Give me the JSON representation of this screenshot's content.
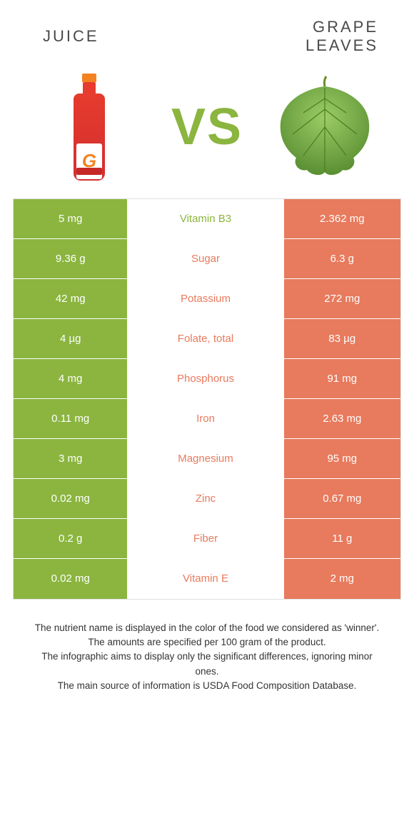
{
  "header": {
    "left": "JUICE",
    "right_line1": "GRAPE",
    "right_line2": "LEAVES",
    "vs": "VS"
  },
  "colors": {
    "left_bg": "#8bb53f",
    "right_bg": "#e87a5d",
    "mid_bg": "#ffffff",
    "cell_text": "#ffffff",
    "border": "#e0e0e0",
    "title_text": "#4a4a4a",
    "footer_text": "#333333",
    "winner_left": "#8bb53f",
    "winner_right": "#e87a5d"
  },
  "rows": [
    {
      "left": "5 mg",
      "label": "Vitamin B3",
      "right": "2.362 mg",
      "winner": "left"
    },
    {
      "left": "9.36 g",
      "label": "Sugar",
      "right": "6.3 g",
      "winner": "right"
    },
    {
      "left": "42 mg",
      "label": "Potassium",
      "right": "272 mg",
      "winner": "right"
    },
    {
      "left": "4 µg",
      "label": "Folate, total",
      "right": "83 µg",
      "winner": "right"
    },
    {
      "left": "4 mg",
      "label": "Phosphorus",
      "right": "91 mg",
      "winner": "right"
    },
    {
      "left": "0.11 mg",
      "label": "Iron",
      "right": "2.63 mg",
      "winner": "right"
    },
    {
      "left": "3 mg",
      "label": "Magnesium",
      "right": "95 mg",
      "winner": "right"
    },
    {
      "left": "0.02 mg",
      "label": "Zinc",
      "right": "0.67 mg",
      "winner": "right"
    },
    {
      "left": "0.2 g",
      "label": "Fiber",
      "right": "11 g",
      "winner": "right"
    },
    {
      "left": "0.02 mg",
      "label": "Vitamin E",
      "right": "2 mg",
      "winner": "right"
    }
  ],
  "footer": {
    "line1": "The nutrient name is displayed in the color of the food we considered as 'winner'.",
    "line2": "The amounts are specified per 100 gram of the product.",
    "line3": "The infographic aims to display only the significant differences, ignoring minor ones.",
    "line4": "The main source of information is USDA Food Composition Database."
  }
}
